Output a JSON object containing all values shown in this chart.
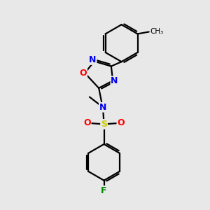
{
  "background_color": "#e8e8e8",
  "bond_color": "#000000",
  "figsize": [
    3.0,
    3.0
  ],
  "dpi": 100,
  "atom_colors": {
    "N": "#0000ee",
    "O": "#ff0000",
    "S": "#cccc00",
    "F": "#008800",
    "C": "#000000"
  },
  "font_size_atoms": 9,
  "font_size_small": 8
}
